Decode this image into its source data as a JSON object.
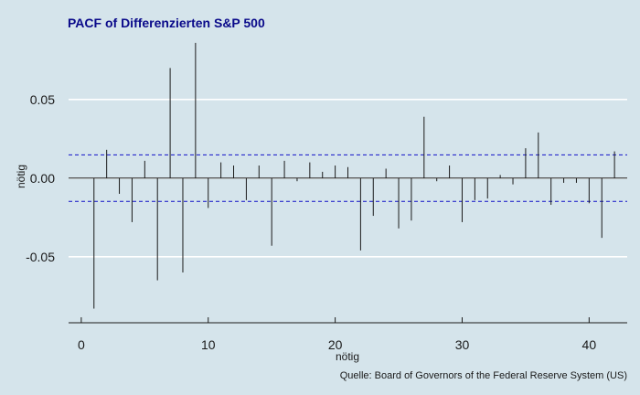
{
  "chart_data": {
    "type": "bar",
    "title": "PACF of Differenzierten S&P 500",
    "xlabel": "nötig",
    "ylabel": "nötig",
    "caption": "Quelle: Board of Governors of the Federal Reserve System (US)",
    "xlim": [
      -1,
      43
    ],
    "ylim": [
      -0.092,
      0.09
    ],
    "x_ticks": [
      0,
      10,
      20,
      30,
      40
    ],
    "x_tick_labels": [
      "0",
      "10",
      "20",
      "30",
      "40"
    ],
    "y_ticks": [
      0.05,
      0.0,
      -0.05
    ],
    "y_tick_labels": [
      "0.05",
      "0.00",
      "-0.05"
    ],
    "confidence_bounds": [
      0.0148,
      -0.0148
    ],
    "grid": true,
    "colors": {
      "background": "#d5e4eb",
      "grid": "#ffffff",
      "bars": "#1a1a1a",
      "confidence": "#1010c8",
      "title": "#0a0a8a"
    },
    "lags": [
      1,
      2,
      3,
      4,
      5,
      6,
      7,
      8,
      9,
      10,
      11,
      12,
      13,
      14,
      15,
      16,
      17,
      18,
      19,
      20,
      21,
      22,
      23,
      24,
      25,
      26,
      27,
      28,
      29,
      30,
      31,
      32,
      33,
      34,
      35,
      36,
      37,
      38,
      39,
      40,
      41,
      42
    ],
    "values": [
      -0.083,
      0.018,
      -0.01,
      -0.028,
      0.011,
      -0.065,
      0.07,
      -0.06,
      0.086,
      -0.019,
      0.01,
      0.008,
      -0.014,
      0.008,
      -0.043,
      0.011,
      -0.002,
      0.01,
      0.004,
      0.008,
      0.007,
      -0.046,
      -0.024,
      0.006,
      -0.032,
      -0.027,
      0.039,
      -0.002,
      0.008,
      -0.028,
      -0.014,
      -0.013,
      0.002,
      -0.004,
      0.019,
      0.029,
      -0.017,
      -0.003,
      -0.003,
      -0.016,
      -0.038,
      0.017
    ]
  }
}
